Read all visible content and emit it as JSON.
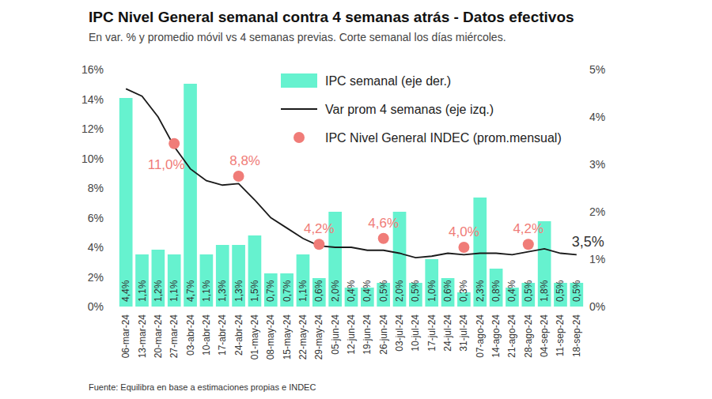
{
  "chart_data": {
    "type": "bar",
    "title": "IPC Nivel General semanal contra 4 semanas atrás - Datos efectivos",
    "subtitle": "En var. % y promedio móvil vs 4 semanas previas. Corte semanal los días miércoles.",
    "source": "Fuente: Equilibra en base a estimaciones propias e INDEC",
    "categories": [
      "06-mar-24",
      "13-mar-24",
      "20-mar-24",
      "27-mar-24",
      "03-abr-24",
      "10-abr-24",
      "17-abr-24",
      "24-abr-24",
      "01-may-24",
      "08-may-24",
      "15-may-24",
      "22-may-24",
      "29-may-24",
      "05-jun-24",
      "12-jun-24",
      "19-jun-24",
      "26-jun-24",
      "03-jul-24",
      "10-jul-24",
      "17-jul-24",
      "24-jul-24",
      "31-jul-24",
      "07-ago-24",
      "14-ago-24",
      "21-ago-24",
      "28-ago-24",
      "04-sep-24",
      "11-sep-24",
      "18-sep-24"
    ],
    "series": [
      {
        "name": "IPC semanal (eje der.)",
        "type": "bar",
        "axis": "y2",
        "color": "#66f2cf",
        "data_labels": true,
        "values": [
          4.4,
          1.1,
          1.2,
          1.1,
          4.7,
          1.1,
          1.3,
          1.3,
          1.5,
          0.7,
          0.7,
          1.1,
          0.6,
          2.0,
          0.4,
          0.4,
          0.5,
          2.0,
          0.5,
          1.0,
          0.6,
          0.3,
          2.3,
          0.8,
          0.4,
          0.5,
          1.8,
          0.5,
          0.5
        ],
        "value_labels": [
          "4,4%",
          "1,1%",
          "1,2%",
          "1,1%",
          "4,7%",
          "1,1%",
          "1,3%",
          "1,3%",
          "1,5%",
          "0,7%",
          "0,7%",
          "1,1%",
          "0,6%",
          "2,0%",
          "0,4%",
          "0,4%",
          "0,5%",
          "2,0%",
          "0,5%",
          "1,0%",
          "0,6%",
          "0,3%",
          "2,3%",
          "0,8%",
          "0,4%",
          "0,5%",
          "1,8%",
          "0,5%",
          "0,5%"
        ]
      },
      {
        "name": "Var prom 4 semanas (eje izq.)",
        "type": "line",
        "color": "#1a1a1a",
        "data_labels": true,
        "values": [
          14.7,
          14.2,
          12.8,
          10.8,
          9.3,
          8.5,
          8.2,
          8.3,
          7.2,
          6.0,
          5.3,
          4.6,
          4.1,
          4.0,
          4.0,
          3.8,
          3.8,
          3.6,
          3.3,
          3.4,
          3.6,
          3.5,
          3.6,
          3.6,
          3.5,
          3.7,
          3.9,
          3.6,
          3.5
        ],
        "value_labels": [
          null,
          null,
          null,
          null,
          null,
          null,
          null,
          null,
          null,
          null,
          null,
          null,
          null,
          null,
          null,
          null,
          null,
          null,
          null,
          null,
          null,
          null,
          null,
          null,
          null,
          null,
          null,
          null,
          "3,5%"
        ]
      },
      {
        "name": "IPC Nivel General INDEC (prom.mensual)",
        "type": "scatter",
        "marker": "circle",
        "color": "#f07c78",
        "data_labels": true,
        "values": [
          null,
          null,
          null,
          11.0,
          null,
          null,
          null,
          8.8,
          null,
          null,
          null,
          null,
          4.2,
          null,
          null,
          null,
          4.6,
          null,
          null,
          null,
          null,
          4.0,
          null,
          null,
          null,
          4.2,
          null,
          null,
          null
        ],
        "value_labels": [
          null,
          null,
          null,
          "11,0%",
          null,
          null,
          null,
          "8,8%",
          null,
          null,
          null,
          null,
          "4,2%",
          null,
          null,
          null,
          "4,6%",
          null,
          null,
          null,
          null,
          "4,0%",
          null,
          null,
          null,
          "4,2%",
          null,
          null,
          null
        ]
      }
    ],
    "ylim": [
      0,
      16
    ],
    "yticks": [
      {
        "value": 0,
        "label": "0%"
      },
      {
        "value": 2,
        "label": "2%"
      },
      {
        "value": 4,
        "label": "4%"
      },
      {
        "value": 6,
        "label": "6%"
      },
      {
        "value": 8,
        "label": "8%"
      },
      {
        "value": 10,
        "label": "10%"
      },
      {
        "value": 12,
        "label": "12%"
      },
      {
        "value": 14,
        "label": "14%"
      },
      {
        "value": 16,
        "label": "16%"
      }
    ],
    "y2lim": [
      0,
      5
    ],
    "y2ticks": [
      {
        "value": 0,
        "label": "0%"
      },
      {
        "value": 1,
        "label": "1%"
      },
      {
        "value": 2,
        "label": "2%"
      },
      {
        "value": 3,
        "label": "3%"
      },
      {
        "value": 4,
        "label": "4%"
      },
      {
        "value": 5,
        "label": "5%"
      }
    ],
    "grid": false,
    "legend": "top"
  }
}
